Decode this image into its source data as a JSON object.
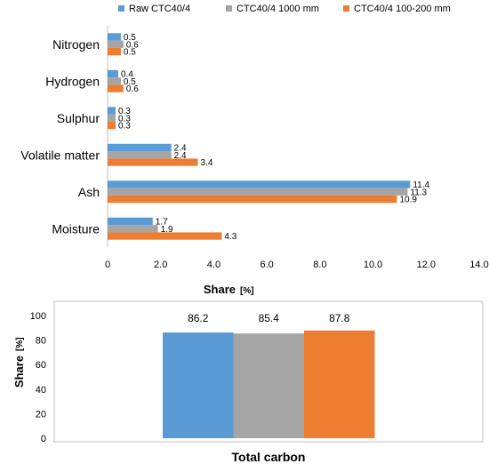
{
  "colors": {
    "series1": "#5b9bd5",
    "series2": "#a5a5a5",
    "series3": "#ed7d31",
    "axis": "#bfbfbf",
    "frame": "#bfbfbf"
  },
  "chart_data": [
    {
      "type": "bar",
      "orientation": "horizontal",
      "categories": [
        "Nitrogen",
        "Hydrogen",
        "Sulphur",
        "Volatile matter",
        "Ash",
        "Moisture"
      ],
      "series": [
        {
          "name": "Raw CTC40/4",
          "values": [
            0.5,
            0.4,
            0.3,
            2.4,
            11.4,
            1.7
          ]
        },
        {
          "name": "CTC40/4 1000 mm",
          "values": [
            0.6,
            0.5,
            0.3,
            2.4,
            11.3,
            1.9
          ]
        },
        {
          "name": "CTC40/4 100-200 mm",
          "values": [
            0.5,
            0.6,
            0.3,
            3.4,
            10.9,
            4.3
          ]
        }
      ],
      "data_labels": [
        [
          "0.5",
          "0.4",
          "0.3",
          "2.4",
          "11.4",
          "1.7"
        ],
        [
          "0.6",
          "0.5",
          "0.3",
          "2.4",
          "11.3",
          "1.9"
        ],
        [
          "0.5",
          "0.6",
          "0.3",
          "3.4",
          "10.9",
          "4.3"
        ]
      ],
      "xlim": [
        0,
        14
      ],
      "xticks": [
        "0",
        "2.0",
        "4.0",
        "6.0",
        "8.0",
        "10.0",
        "12.0",
        "14.0"
      ],
      "xlabel": "Share",
      "xlabel_unit": "[%]",
      "ylabel": "",
      "legend_position": "top",
      "grid": false
    },
    {
      "type": "bar",
      "orientation": "vertical",
      "categories": [
        "Total carbon"
      ],
      "series": [
        {
          "name": "Raw CTC40/4",
          "values": [
            86.2
          ]
        },
        {
          "name": "CTC40/4 1000 mm",
          "values": [
            85.4
          ]
        },
        {
          "name": "CTC40/4 100-200 mm",
          "values": [
            87.8
          ]
        }
      ],
      "data_labels": [
        [
          "86.2"
        ],
        [
          "85.4"
        ],
        [
          "87.8"
        ]
      ],
      "ylim": [
        0,
        100
      ],
      "yticks": [
        "0",
        "20",
        "40",
        "60",
        "80",
        "100"
      ],
      "xlabel": "Total carbon",
      "ylabel": "Share",
      "ylabel_unit": "[%]",
      "legend_position": "none",
      "grid": false
    }
  ]
}
